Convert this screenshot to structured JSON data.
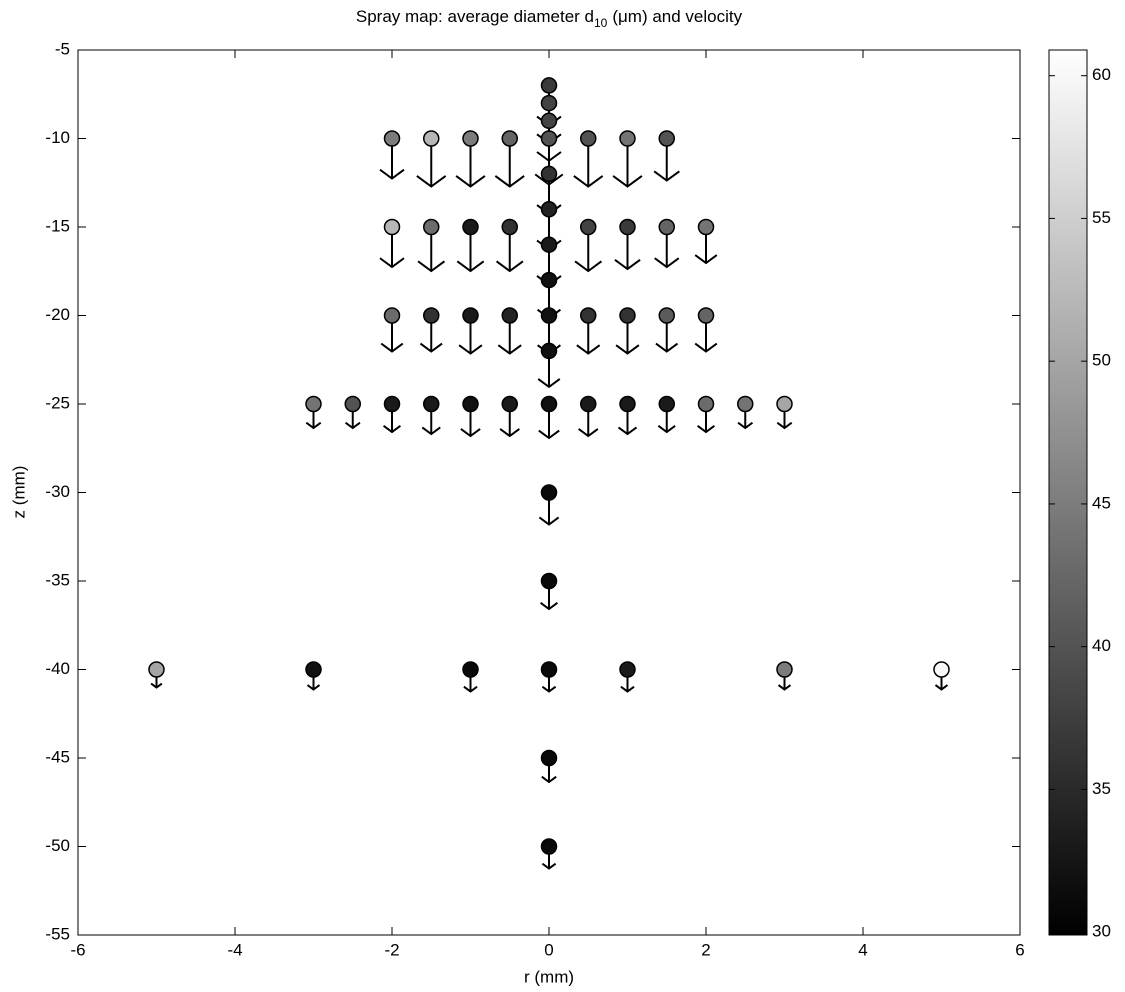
{
  "chart_data": {
    "type": "scatter",
    "title": "Spray map: average diameter d",
    "title_subscript": "10",
    "title_end": "(μm) and velocity",
    "xlabel": "r (mm)",
    "ylabel": "z (mm)",
    "xlim": [
      -6,
      6
    ],
    "xticks": [
      -6,
      -4,
      -2,
      0,
      2,
      4,
      6
    ],
    "ylim": [
      -55,
      -5
    ],
    "yticks": [
      -55,
      -50,
      -45,
      -40,
      -35,
      -30,
      -25,
      -20,
      -15,
      -10,
      -5
    ],
    "colormap": "gray",
    "colorbar": {
      "clim": [
        29.9,
        60.9
      ],
      "ticks": [
        30,
        35,
        40,
        45,
        50,
        55,
        60
      ]
    },
    "r": [
      0,
      0,
      0,
      -2,
      -1.5,
      -1,
      -0.5,
      0,
      0.5,
      1,
      1.5,
      0,
      0,
      -2,
      -1.5,
      -1,
      -0.5,
      0.5,
      1,
      1.5,
      2,
      0,
      0,
      -2,
      -1.5,
      -1,
      -0.5,
      0,
      0.5,
      1,
      1.5,
      2,
      0,
      -3,
      -2.5,
      -2,
      -1.5,
      -1,
      -0.5,
      0,
      0.5,
      1,
      1.5,
      2,
      2.5,
      3,
      0,
      0,
      -5,
      -3,
      -1,
      0,
      1,
      3,
      5,
      0,
      0
    ],
    "z": [
      -7,
      -8,
      -9,
      -10,
      -10,
      -10,
      -10,
      -10,
      -10,
      -10,
      -10,
      -12,
      -14,
      -15,
      -15,
      -15,
      -15,
      -15,
      -15,
      -15,
      -15,
      -16,
      -18,
      -20,
      -20,
      -20,
      -20,
      -20,
      -20,
      -20,
      -20,
      -20,
      -22,
      -25,
      -25,
      -25,
      -25,
      -25,
      -25,
      -25,
      -25,
      -25,
      -25,
      -25,
      -25,
      -25,
      -30,
      -35,
      -40,
      -40,
      -40,
      -40,
      -40,
      -40,
      -40,
      -45,
      -50
    ],
    "d10": [
      37,
      38,
      38,
      45,
      52,
      45,
      42,
      40,
      40,
      44,
      40,
      36,
      34,
      52,
      43,
      33,
      36,
      38,
      37,
      42,
      44,
      33,
      32,
      43,
      36,
      33,
      34,
      32,
      36,
      36,
      41,
      42,
      32,
      44,
      40,
      33,
      33,
      32,
      33,
      32,
      33,
      33,
      33,
      43,
      44,
      50,
      31,
      31,
      50,
      32,
      31,
      31,
      33,
      45,
      60,
      31,
      31
    ],
    "velocity": [
      10,
      10,
      10,
      10,
      12,
      12,
      12,
      11.5,
      12,
      12,
      10.5,
      10,
      10,
      10,
      11,
      11,
      11,
      11,
      10.5,
      10,
      9,
      10,
      9.5,
      9,
      9,
      9.5,
      9.5,
      9.5,
      9.5,
      9.5,
      9,
      9,
      9,
      6,
      6,
      7,
      7.5,
      8,
      8,
      8.5,
      8,
      7.5,
      7,
      7,
      6,
      6,
      8,
      7,
      4.5,
      5,
      5.5,
      5.5,
      5.5,
      5,
      5,
      6,
      5.5
    ]
  }
}
